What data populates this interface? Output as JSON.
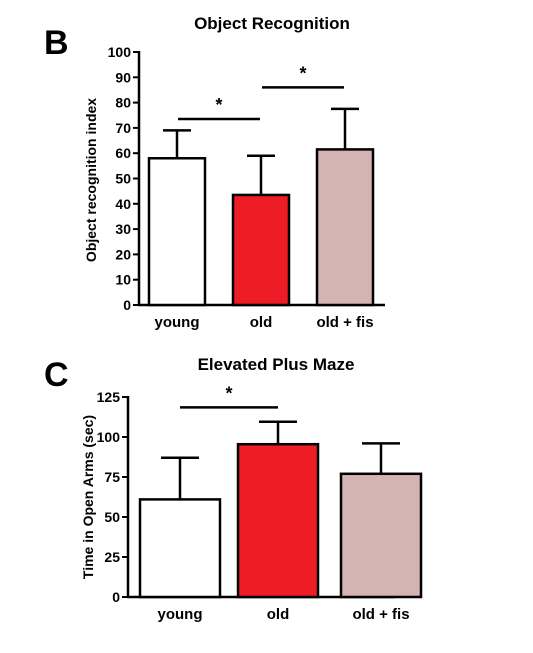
{
  "chart_data": [
    {
      "panel": "B",
      "type": "bar",
      "title": "Object Recognition",
      "ylabel": "Object recognition index",
      "xlabel": "",
      "categories": [
        "young",
        "old",
        "old + fis"
      ],
      "values": [
        58,
        43.5,
        61.5
      ],
      "errors": [
        69,
        59,
        77.5
      ],
      "bar_colors": [
        "#ffffff",
        "#ee1c24",
        "#d6b3b3"
      ],
      "ylim": [
        0,
        100
      ],
      "yticks": [
        0,
        10,
        20,
        30,
        40,
        50,
        60,
        70,
        80,
        90,
        100
      ],
      "significance": [
        {
          "from": 0,
          "to": 1,
          "label": "*",
          "y": 73.5
        },
        {
          "from": 1,
          "to": 2,
          "label": "*",
          "y": 86
        }
      ],
      "grid": false,
      "legend": "none"
    },
    {
      "panel": "C",
      "type": "bar",
      "title": "Elevated Plus Maze",
      "ylabel": "Time in Open Arms (sec)",
      "xlabel": "",
      "categories": [
        "young",
        "old",
        "old + fis"
      ],
      "values": [
        61,
        95.5,
        77
      ],
      "errors": [
        87,
        109.5,
        96
      ],
      "bar_colors": [
        "#ffffff",
        "#ee1c24",
        "#d6b3b3"
      ],
      "ylim": [
        0,
        125
      ],
      "yticks": [
        0,
        25,
        50,
        75,
        100,
        125
      ],
      "significance": [
        {
          "from": 0,
          "to": 1,
          "label": "*",
          "y": 118.5
        }
      ],
      "grid": false,
      "legend": "none"
    }
  ]
}
